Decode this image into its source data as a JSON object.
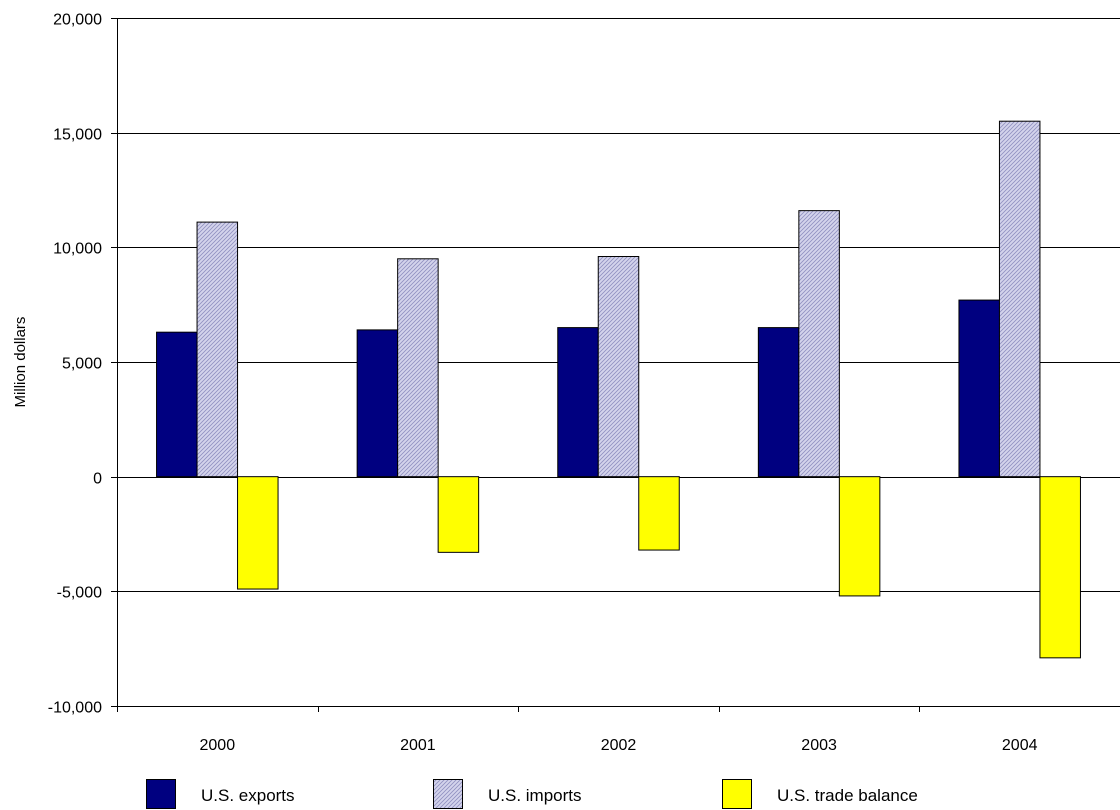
{
  "chart_data": {
    "type": "bar",
    "title": "",
    "xlabel": "",
    "ylabel": "Million dollars",
    "ylim": [
      -10000,
      20000
    ],
    "yticks": [
      -10000,
      -5000,
      0,
      5000,
      10000,
      15000,
      20000
    ],
    "ytick_labels": [
      "-10,000",
      "-5,000",
      "0",
      "5,000",
      "10,000",
      "15,000",
      "20,000"
    ],
    "categories": [
      "2000",
      "2001",
      "2002",
      "2003",
      "2004"
    ],
    "grid": "horizontal",
    "legend_position": "bottom",
    "series": [
      {
        "name": "U.S. exports",
        "values": [
          6300,
          6400,
          6500,
          6500,
          7700
        ],
        "color": "#000080",
        "pattern": "solid"
      },
      {
        "name": "U.S. imports",
        "values": [
          11100,
          9500,
          9600,
          11600,
          15500
        ],
        "color": "#c0c0e0",
        "pattern": "hatched"
      },
      {
        "name": "U.S. trade balance",
        "values": [
          -4900,
          -3300,
          -3200,
          -5200,
          -7900
        ],
        "color": "#ffff00",
        "pattern": "solid"
      }
    ]
  }
}
